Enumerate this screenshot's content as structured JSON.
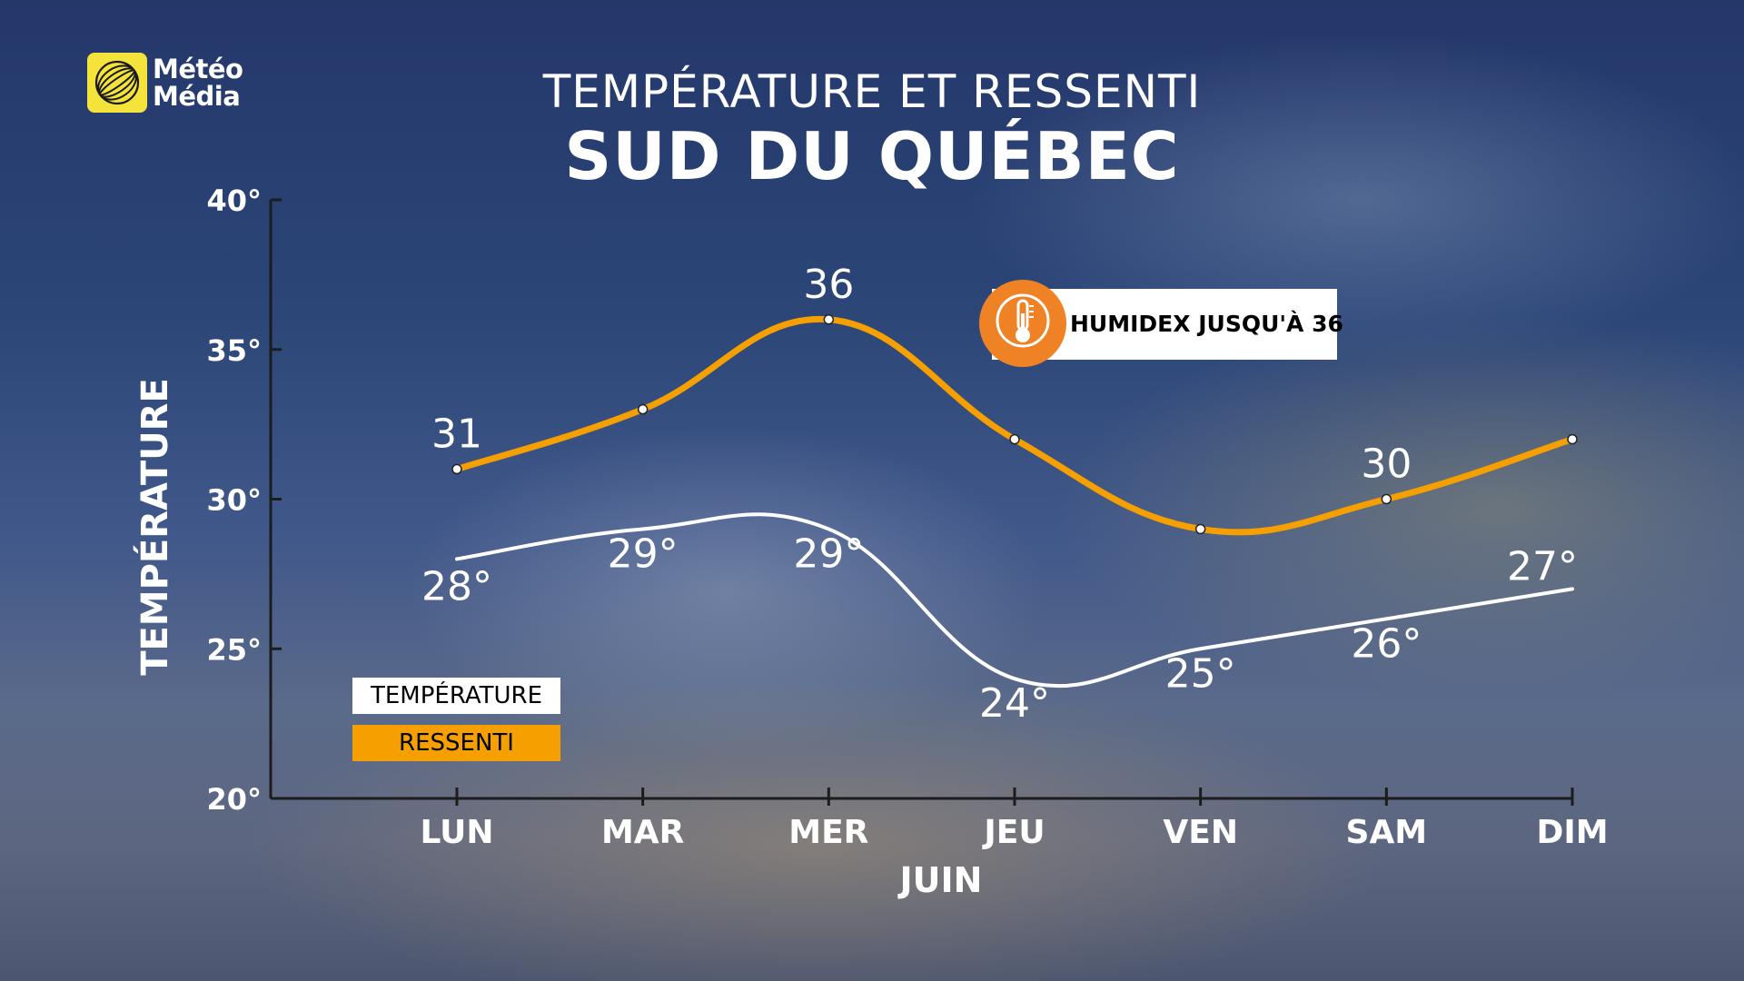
{
  "logo": {
    "line1": "Météo",
    "line2": "Média",
    "icon": "globe-icon"
  },
  "title_top": "TEMPÉRATURE ET RESSENTI",
  "title_main": "SUD DU QUÉBEC",
  "callout": {
    "text": "HUMIDEX JUSQU'À 36",
    "icon": "thermometer-icon"
  },
  "legend": {
    "temperature": "TEMPÉRATURE",
    "ressenti": "RESSENTI"
  },
  "colors": {
    "ressenti": "#f5a000",
    "temperature": "#ffffff",
    "callout_icon": "#f08226",
    "logo": "#f4e33a"
  },
  "chart_data": {
    "type": "line",
    "categories": [
      "LUN",
      "MAR",
      "MER",
      "JEU",
      "VEN",
      "SAM",
      "DIM"
    ],
    "series": [
      {
        "name": "RESSENTI",
        "values": [
          31,
          33,
          36,
          32,
          29,
          30,
          32
        ],
        "labels": [
          "31",
          "",
          "36",
          "",
          "",
          "30",
          ""
        ]
      },
      {
        "name": "TEMPÉRATURE",
        "values": [
          28,
          29,
          29,
          24,
          25,
          26,
          27
        ],
        "labels": [
          "28°",
          "29°",
          "29°",
          "24°",
          "25°",
          "26°",
          "27°"
        ]
      }
    ],
    "ylabel": "TEMPÉRATURE",
    "xlabel": "JUIN",
    "ylim": [
      20,
      40
    ],
    "yticks": [
      "20°",
      "25°",
      "30°",
      "35°",
      "40°"
    ],
    "grid": false,
    "legend_position": "bottom-left"
  }
}
